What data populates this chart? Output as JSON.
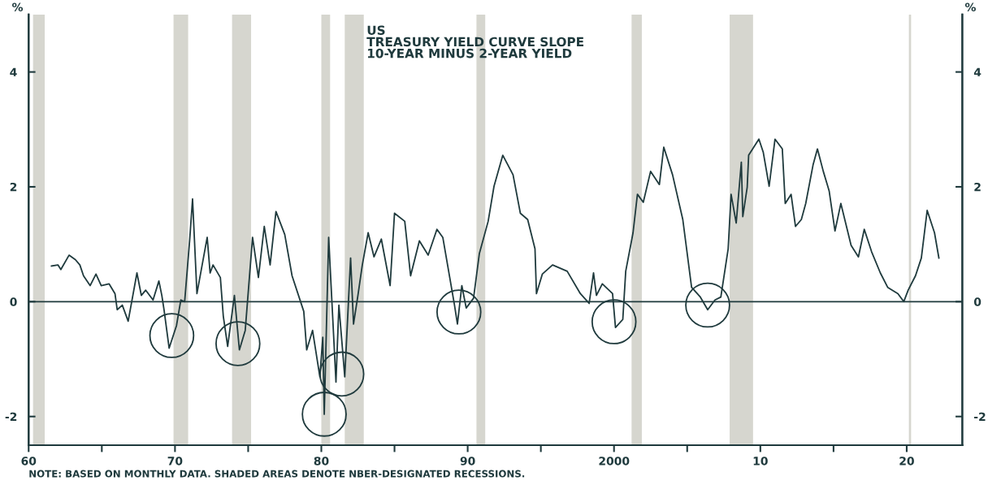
{
  "chart_data": {
    "type": "line",
    "title": "US\nTREASURY YIELD CURVE SLOPE\n10-YEAR MINUS 2-YEAR YIELD",
    "ylabel": "%",
    "y2label": "%",
    "annotations": [
      "NOTE: BASED ON MONTHLY DATA. SHADED AREAS DENOTE NBER-DESIGNATED RECESSIONS."
    ],
    "series": [
      {
        "color": "#1f3a3d",
        "x": [
          1961.56,
          1962.0,
          1962.2,
          1962.76,
          1963.2,
          1963.5,
          1963.75,
          1964.2,
          1964.6,
          1964.96,
          1965.5,
          1965.9,
          1966.05,
          1966.4,
          1966.8,
          1967.4,
          1967.7,
          1968.0,
          1968.5,
          1968.9,
          1969.1,
          1969.25,
          1969.6,
          1970.1,
          1970.4,
          1970.66,
          1971.0,
          1971.2,
          1971.5,
          1972.2,
          1972.4,
          1972.6,
          1973.1,
          1973.3,
          1973.6,
          1974.06,
          1974.4,
          1974.8,
          1975.3,
          1975.7,
          1976.1,
          1976.5,
          1976.9,
          1977.5,
          1978.0,
          1978.8,
          1979.0,
          1979.4,
          1979.9,
          1980.1,
          1980.2,
          1980.5,
          1981.0,
          1981.2,
          1981.6,
          1982.0,
          1982.2,
          1982.5,
          1982.8,
          1983.2,
          1983.6,
          1984.1,
          1984.7,
          1985.0,
          1985.7,
          1986.1,
          1986.7,
          1987.3,
          1987.9,
          1988.3,
          1989.1,
          1989.3,
          1989.6,
          1989.9,
          1990.4,
          1990.8,
          1991.4,
          1991.8,
          1992.4,
          1993.1,
          1993.6,
          1994.1,
          1994.6,
          1994.7,
          1995.1,
          1995.8,
          1996.8,
          1997.7,
          1998.3,
          1998.6,
          1998.8,
          1999.2,
          1999.9,
          2000.1,
          2000.6,
          2000.8,
          2001.3,
          2001.6,
          2002.0,
          2002.5,
          2003.1,
          2003.4,
          2004.0,
          2004.7,
          2005.3,
          2005.9,
          2006.4,
          2006.9,
          2007.3,
          2007.8,
          2008.0,
          2008.35,
          2008.7,
          2008.8,
          2009.1,
          2009.2,
          2009.9,
          2010.2,
          2010.6,
          2011.0,
          2011.5,
          2011.7,
          2012.1,
          2012.4,
          2012.8,
          2013.1,
          2013.6,
          2013.9,
          2014.3,
          2014.7,
          2015.1,
          2015.5,
          2016.2,
          2016.7,
          2017.1,
          2017.6,
          2018.2,
          2018.7,
          2019.4,
          2019.8,
          2020.1,
          2020.6,
          2021.0,
          2021.4,
          2021.9,
          2022.2
        ],
        "values": [
          0.62,
          0.64,
          0.56,
          0.81,
          0.73,
          0.64,
          0.45,
          0.28,
          0.48,
          0.28,
          0.31,
          0.14,
          -0.14,
          -0.06,
          -0.34,
          0.5,
          0.11,
          0.2,
          0.03,
          0.36,
          0.11,
          -0.14,
          -0.81,
          -0.42,
          0.03,
          0.0,
          1.06,
          1.79,
          0.14,
          1.12,
          0.5,
          0.64,
          0.42,
          -0.25,
          -0.78,
          0.11,
          -0.84,
          -0.5,
          1.12,
          0.42,
          1.31,
          0.64,
          1.57,
          1.17,
          0.45,
          -0.17,
          -0.84,
          -0.5,
          -1.31,
          -0.62,
          -1.96,
          1.12,
          -1.4,
          -0.06,
          -1.31,
          0.76,
          -0.39,
          0.11,
          0.64,
          1.2,
          0.78,
          1.09,
          0.28,
          1.54,
          1.4,
          0.45,
          1.06,
          0.81,
          1.26,
          1.12,
          -0.06,
          -0.39,
          0.28,
          -0.11,
          0.06,
          0.84,
          1.4,
          2.01,
          2.55,
          2.21,
          1.54,
          1.43,
          0.92,
          0.14,
          0.48,
          0.64,
          0.53,
          0.14,
          -0.03,
          0.5,
          0.11,
          0.31,
          0.14,
          -0.45,
          -0.31,
          0.53,
          1.2,
          1.87,
          1.73,
          2.27,
          2.04,
          2.69,
          2.21,
          1.43,
          0.25,
          0.08,
          -0.14,
          0.03,
          0.08,
          0.92,
          1.87,
          1.37,
          2.43,
          1.48,
          1.99,
          2.55,
          2.83,
          2.6,
          2.01,
          2.83,
          2.66,
          1.71,
          1.87,
          1.31,
          1.43,
          1.71,
          2.38,
          2.66,
          2.27,
          1.93,
          1.23,
          1.71,
          0.98,
          0.78,
          1.26,
          0.87,
          0.5,
          0.25,
          0.14,
          0.0,
          0.2,
          0.45,
          0.76,
          1.59,
          1.2,
          0.76
        ]
      },
      {
        "type": "scatter",
        "color": "#1f3a3d",
        "marker": "circle",
        "x": [
          1969.78,
          1974.3,
          1980.2,
          1981.4,
          1989.4,
          2000.0,
          2006.4
        ],
        "values": [
          -0.59,
          -0.73,
          -1.96,
          -1.26,
          -0.18,
          -0.35,
          -0.06
        ]
      }
    ],
    "xlim": [
      1960,
      2023.8
    ],
    "xticks": [
      {
        "value": 1960,
        "label": "60"
      },
      {
        "value": 1965,
        "label": null
      },
      {
        "value": 1970,
        "label": "70"
      },
      {
        "value": 1975,
        "label": null
      },
      {
        "value": 1980,
        "label": "80"
      },
      {
        "value": 1985,
        "label": null
      },
      {
        "value": 1990,
        "label": "90"
      },
      {
        "value": 1995,
        "label": null
      },
      {
        "value": 2000,
        "label": "2000"
      },
      {
        "value": 2005,
        "label": null
      },
      {
        "value": 2010,
        "label": "10"
      },
      {
        "value": 2015,
        "label": null
      },
      {
        "value": 2020,
        "label": "20"
      }
    ],
    "ylim": [
      -2.5,
      5
    ],
    "yticks": [
      -2,
      0,
      2,
      4
    ],
    "y2lim": [
      -2.5,
      5
    ],
    "y2ticks": [
      -2,
      0,
      2,
      4
    ],
    "ref_lines": [
      {
        "axis": "y",
        "value": 0,
        "color": "#1f3a3d"
      }
    ],
    "bands": [
      {
        "axis": "x",
        "from": 1960.3,
        "to": 1961.1,
        "color": "#d6d6cf"
      },
      {
        "axis": "x",
        "from": 1969.9,
        "to": 1970.9,
        "color": "#d6d6cf"
      },
      {
        "axis": "x",
        "from": 1973.9,
        "to": 1975.2,
        "color": "#d6d6cf"
      },
      {
        "axis": "x",
        "from": 1980.0,
        "to": 1980.6,
        "color": "#d6d6cf"
      },
      {
        "axis": "x",
        "from": 1981.6,
        "to": 1982.9,
        "color": "#d6d6cf"
      },
      {
        "axis": "x",
        "from": 1990.6,
        "to": 1991.2,
        "color": "#d6d6cf"
      },
      {
        "axis": "x",
        "from": 2001.2,
        "to": 2001.9,
        "color": "#d6d6cf"
      },
      {
        "axis": "x",
        "from": 2007.9,
        "to": 2009.5,
        "color": "#d6d6cf"
      },
      {
        "axis": "x",
        "from": 2020.15,
        "to": 2020.3,
        "color": "#d6d6cf"
      }
    ],
    "grid": false
  }
}
